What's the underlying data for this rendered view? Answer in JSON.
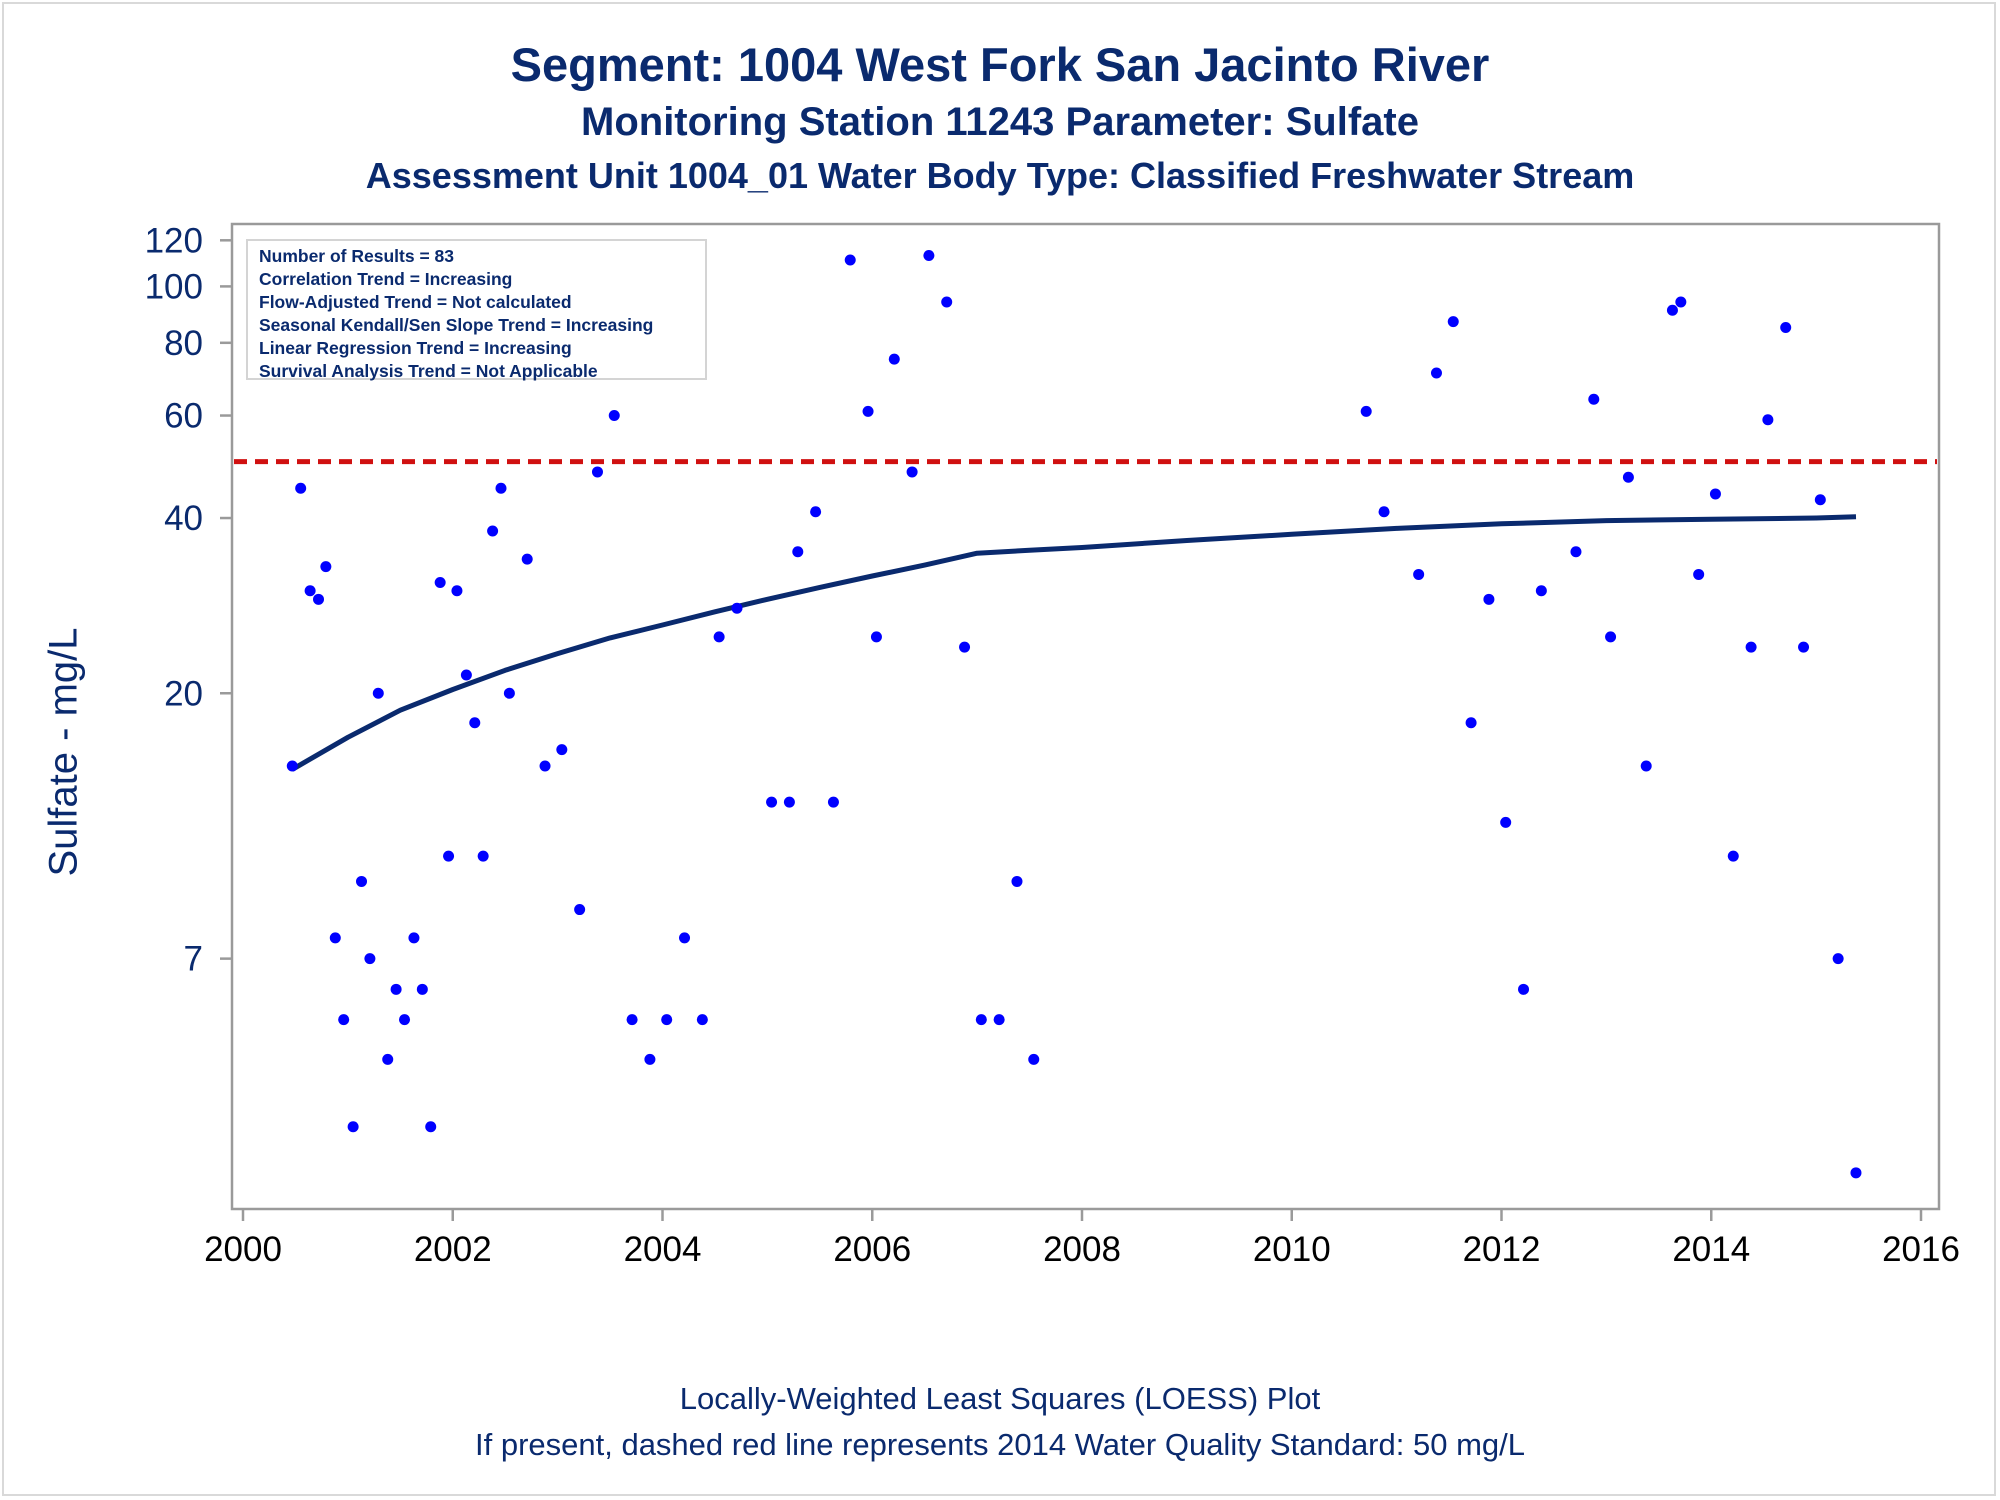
{
  "title": "Segment: 1004  West Fork San Jacinto River",
  "subtitle": "Monitoring Station 11243 Parameter: Sulfate",
  "subtitle2": "Assessment Unit 1004_01   Water Body Type: Classified Freshwater Stream",
  "footer": {
    "line1": "Locally-Weighted Least Squares (LOESS) Plot",
    "line2": "If present, dashed red line represents 2014 Water Quality Standard: 50    mg/L"
  },
  "stats_box": [
    "Number of Results = 83",
    "Correlation Trend = Increasing",
    "Flow-Adjusted Trend = Not calculated",
    "Seasonal Kendall/Sen Slope Trend = Increasing",
    "Linear Regression Trend = Increasing",
    "Survival Analysis Trend = Not Applicable"
  ],
  "colors": {
    "text": "#0a2a6e",
    "points": "#0000ff",
    "loess": "#0a2a6e",
    "standard": "#d01010",
    "axis": "#9a9a9a"
  },
  "chart_data": {
    "type": "scatter",
    "xlabel": "",
    "ylabel": "Sulfate - mg/L",
    "xlim": [
      2000,
      2016
    ],
    "ylim": [
      2.6,
      128
    ],
    "y_scale": "log",
    "xticks": [
      2000,
      2002,
      2004,
      2006,
      2008,
      2010,
      2012,
      2014,
      2016
    ],
    "yticks": [
      7,
      20,
      40,
      60,
      80,
      100,
      120
    ],
    "grid": false,
    "standard_line": {
      "value": 50
    },
    "points": [
      {
        "x": 2000.47,
        "y": 15
      },
      {
        "x": 2000.55,
        "y": 45
      },
      {
        "x": 2000.64,
        "y": 30
      },
      {
        "x": 2000.72,
        "y": 29
      },
      {
        "x": 2000.79,
        "y": 33
      },
      {
        "x": 2000.88,
        "y": 7.6
      },
      {
        "x": 2000.96,
        "y": 5.5
      },
      {
        "x": 2001.05,
        "y": 3.6
      },
      {
        "x": 2001.13,
        "y": 9.5
      },
      {
        "x": 2001.21,
        "y": 7
      },
      {
        "x": 2001.29,
        "y": 20
      },
      {
        "x": 2001.38,
        "y": 4.7
      },
      {
        "x": 2001.46,
        "y": 6.2
      },
      {
        "x": 2001.54,
        "y": 5.5
      },
      {
        "x": 2001.63,
        "y": 7.6
      },
      {
        "x": 2001.71,
        "y": 6.2
      },
      {
        "x": 2001.79,
        "y": 3.6
      },
      {
        "x": 2001.88,
        "y": 31
      },
      {
        "x": 2001.96,
        "y": 10.5
      },
      {
        "x": 2002.04,
        "y": 30
      },
      {
        "x": 2002.13,
        "y": 21.5
      },
      {
        "x": 2002.21,
        "y": 17.8
      },
      {
        "x": 2002.29,
        "y": 10.5
      },
      {
        "x": 2002.38,
        "y": 38
      },
      {
        "x": 2002.46,
        "y": 45
      },
      {
        "x": 2002.54,
        "y": 20
      },
      {
        "x": 2002.71,
        "y": 34
      },
      {
        "x": 2002.88,
        "y": 15
      },
      {
        "x": 2003.04,
        "y": 16
      },
      {
        "x": 2003.21,
        "y": 8.5
      },
      {
        "x": 2003.38,
        "y": 48
      },
      {
        "x": 2003.54,
        "y": 60
      },
      {
        "x": 2003.71,
        "y": 5.5
      },
      {
        "x": 2003.88,
        "y": 4.7
      },
      {
        "x": 2004.04,
        "y": 5.5
      },
      {
        "x": 2004.21,
        "y": 7.6
      },
      {
        "x": 2004.38,
        "y": 5.5
      },
      {
        "x": 2004.54,
        "y": 25
      },
      {
        "x": 2004.71,
        "y": 28
      },
      {
        "x": 2005.04,
        "y": 13
      },
      {
        "x": 2005.21,
        "y": 13
      },
      {
        "x": 2005.29,
        "y": 35
      },
      {
        "x": 2005.46,
        "y": 41
      },
      {
        "x": 2005.63,
        "y": 13
      },
      {
        "x": 2005.79,
        "y": 111
      },
      {
        "x": 2005.96,
        "y": 61
      },
      {
        "x": 2006.04,
        "y": 25
      },
      {
        "x": 2006.21,
        "y": 75
      },
      {
        "x": 2006.38,
        "y": 48
      },
      {
        "x": 2006.54,
        "y": 113
      },
      {
        "x": 2006.71,
        "y": 94
      },
      {
        "x": 2006.88,
        "y": 24
      },
      {
        "x": 2007.04,
        "y": 5.5
      },
      {
        "x": 2007.21,
        "y": 5.5
      },
      {
        "x": 2007.38,
        "y": 9.5
      },
      {
        "x": 2007.54,
        "y": 4.7
      },
      {
        "x": 2010.71,
        "y": 61
      },
      {
        "x": 2010.88,
        "y": 41
      },
      {
        "x": 2011.21,
        "y": 32
      },
      {
        "x": 2011.38,
        "y": 71
      },
      {
        "x": 2011.54,
        "y": 87
      },
      {
        "x": 2011.71,
        "y": 17.8
      },
      {
        "x": 2011.88,
        "y": 29
      },
      {
        "x": 2012.04,
        "y": 12
      },
      {
        "x": 2012.21,
        "y": 6.2
      },
      {
        "x": 2012.38,
        "y": 30
      },
      {
        "x": 2012.71,
        "y": 35
      },
      {
        "x": 2012.88,
        "y": 64
      },
      {
        "x": 2013.04,
        "y": 25
      },
      {
        "x": 2013.21,
        "y": 47
      },
      {
        "x": 2013.38,
        "y": 15
      },
      {
        "x": 2013.63,
        "y": 91
      },
      {
        "x": 2013.71,
        "y": 94
      },
      {
        "x": 2013.88,
        "y": 32
      },
      {
        "x": 2014.04,
        "y": 44
      },
      {
        "x": 2014.21,
        "y": 10.5
      },
      {
        "x": 2014.38,
        "y": 24
      },
      {
        "x": 2014.54,
        "y": 59
      },
      {
        "x": 2014.71,
        "y": 85
      },
      {
        "x": 2014.88,
        "y": 24
      },
      {
        "x": 2015.04,
        "y": 43
      },
      {
        "x": 2015.21,
        "y": 7
      },
      {
        "x": 2015.38,
        "y": 3
      }
    ],
    "loess": [
      {
        "x": 2000.47,
        "y": 14.8
      },
      {
        "x": 2001.0,
        "y": 16.8
      },
      {
        "x": 2001.5,
        "y": 18.7
      },
      {
        "x": 2002.0,
        "y": 20.3
      },
      {
        "x": 2002.5,
        "y": 21.9
      },
      {
        "x": 2003.0,
        "y": 23.4
      },
      {
        "x": 2003.5,
        "y": 24.9
      },
      {
        "x": 2004.0,
        "y": 26.2
      },
      {
        "x": 2004.5,
        "y": 27.6
      },
      {
        "x": 2005.0,
        "y": 29.0
      },
      {
        "x": 2005.5,
        "y": 30.4
      },
      {
        "x": 2006.0,
        "y": 31.8
      },
      {
        "x": 2006.5,
        "y": 33.2
      },
      {
        "x": 2007.0,
        "y": 34.8
      },
      {
        "x": 2007.5,
        "y": 35.2
      },
      {
        "x": 2008.0,
        "y": 35.6
      },
      {
        "x": 2009.0,
        "y": 36.6
      },
      {
        "x": 2010.0,
        "y": 37.5
      },
      {
        "x": 2011.0,
        "y": 38.4
      },
      {
        "x": 2012.0,
        "y": 39.1
      },
      {
        "x": 2013.0,
        "y": 39.6
      },
      {
        "x": 2014.0,
        "y": 39.8
      },
      {
        "x": 2015.0,
        "y": 40.0
      },
      {
        "x": 2015.38,
        "y": 40.2
      }
    ]
  }
}
